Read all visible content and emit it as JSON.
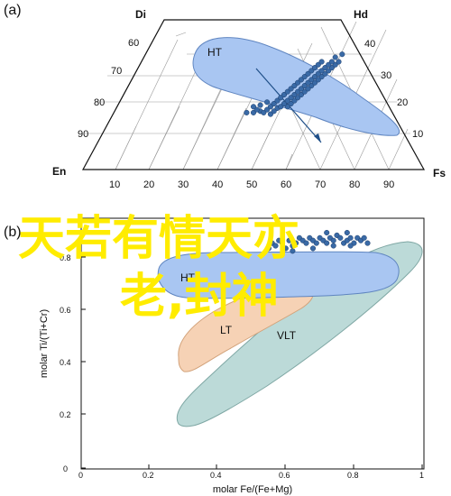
{
  "panel_a": {
    "label": "(a)",
    "corners": {
      "top_left": "Di",
      "top_right": "Hd",
      "bottom_left": "En",
      "bottom_right": "Fs"
    },
    "left_ticks": [
      "60",
      "70",
      "80",
      "90"
    ],
    "right_ticks": [
      "40",
      "30",
      "20",
      "10"
    ],
    "bottom_ticks": [
      "10",
      "20",
      "30",
      "40",
      "50",
      "60",
      "70",
      "80",
      "90"
    ],
    "field_label": "HT"
  },
  "panel_b": {
    "label": "(b)",
    "xlabel": "molar Fe/(Fe+Mg)",
    "ylabel": "molar Ti/(Ti+Cr)",
    "xticks": [
      "0",
      "0.2",
      "0.4",
      "0.6",
      "0.8",
      "1"
    ],
    "yticks": [
      "0",
      "0.2",
      "0.4",
      "0.6",
      "0.8"
    ],
    "fields": {
      "ht": "HT",
      "lt": "LT",
      "vlt": "VLT"
    }
  },
  "overlay_text": [
    "天若有情天亦",
    "老,封神"
  ],
  "colors": {
    "ht_field": "#a9c6f2",
    "lt_field": "#f6d2b5",
    "vlt_field": "#bcdad8",
    "point": "#3a6aa6",
    "overlay": "#ffec00"
  },
  "chart_data": [
    {
      "type": "scatter",
      "subtype": "ternary",
      "series": [
        {
          "points": [
            [
              48,
              38
            ],
            [
              50,
              38
            ],
            [
              52,
              39
            ],
            [
              53,
              38
            ],
            [
              55,
              37
            ],
            [
              51,
              40
            ],
            [
              54,
              40
            ],
            [
              56,
              39
            ],
            [
              57,
              41
            ],
            [
              50,
              42
            ],
            [
              52,
              43
            ],
            [
              55,
              42
            ],
            [
              58,
              42
            ],
            [
              60,
              42
            ],
            [
              56,
              44
            ],
            [
              59,
              44
            ],
            [
              61,
              44
            ],
            [
              54,
              45
            ],
            [
              57,
              46
            ],
            [
              60,
              46
            ],
            [
              62,
              46
            ],
            [
              58,
              48
            ],
            [
              61,
              48
            ],
            [
              63,
              48
            ],
            [
              59,
              50
            ],
            [
              62,
              50
            ],
            [
              64,
              50
            ],
            [
              60,
              52
            ],
            [
              63,
              52
            ],
            [
              65,
              52
            ],
            [
              61,
              54
            ],
            [
              64,
              54
            ],
            [
              66,
              54
            ],
            [
              62,
              56
            ],
            [
              65,
              56
            ],
            [
              67,
              56
            ],
            [
              63,
              58
            ],
            [
              66,
              58
            ],
            [
              68,
              58
            ],
            [
              64,
              60
            ],
            [
              67,
              60
            ],
            [
              69,
              60
            ],
            [
              65,
              62
            ],
            [
              68,
              62
            ],
            [
              70,
              62
            ],
            [
              66,
              64
            ],
            [
              69,
              64
            ],
            [
              71,
              64
            ],
            [
              67,
              66
            ],
            [
              70,
              66
            ],
            [
              72,
              66
            ],
            [
              68,
              68
            ],
            [
              71,
              68
            ],
            [
              73,
              68
            ],
            [
              69,
              70
            ],
            [
              72,
              70
            ],
            [
              74,
              70
            ],
            [
              70,
              72
            ],
            [
              73,
              72
            ],
            [
              75,
              72
            ],
            [
              74,
              75
            ],
            [
              76,
              77
            ]
          ]
        }
      ],
      "fields": [
        {
          "name": "HT"
        }
      ]
    },
    {
      "type": "scatter",
      "xlim": [
        0,
        1
      ],
      "ylim": [
        0,
        1
      ],
      "series": [
        {
          "points": [
            [
              0.55,
              0.84
            ],
            [
              0.56,
              0.86
            ],
            [
              0.57,
              0.85
            ],
            [
              0.58,
              0.87
            ],
            [
              0.59,
              0.86
            ],
            [
              0.6,
              0.84
            ],
            [
              0.61,
              0.87
            ],
            [
              0.62,
              0.85
            ],
            [
              0.63,
              0.86
            ],
            [
              0.64,
              0.88
            ],
            [
              0.65,
              0.87
            ],
            [
              0.66,
              0.86
            ],
            [
              0.67,
              0.88
            ],
            [
              0.68,
              0.87
            ],
            [
              0.69,
              0.86
            ],
            [
              0.7,
              0.88
            ],
            [
              0.71,
              0.87
            ],
            [
              0.72,
              0.86
            ],
            [
              0.73,
              0.88
            ],
            [
              0.74,
              0.87
            ],
            [
              0.75,
              0.89
            ],
            [
              0.76,
              0.88
            ],
            [
              0.77,
              0.86
            ],
            [
              0.78,
              0.87
            ],
            [
              0.79,
              0.88
            ],
            [
              0.8,
              0.86
            ],
            [
              0.81,
              0.88
            ],
            [
              0.82,
              0.87
            ],
            [
              0.83,
              0.88
            ],
            [
              0.84,
              0.86
            ],
            [
              0.62,
              0.83
            ],
            [
              0.68,
              0.84
            ],
            [
              0.74,
              0.85
            ],
            [
              0.79,
              0.85
            ],
            [
              0.72,
              0.9
            ],
            [
              0.78,
              0.9
            ]
          ]
        }
      ],
      "fields": [
        {
          "name": "HT"
        },
        {
          "name": "LT"
        },
        {
          "name": "VLT"
        }
      ]
    }
  ]
}
